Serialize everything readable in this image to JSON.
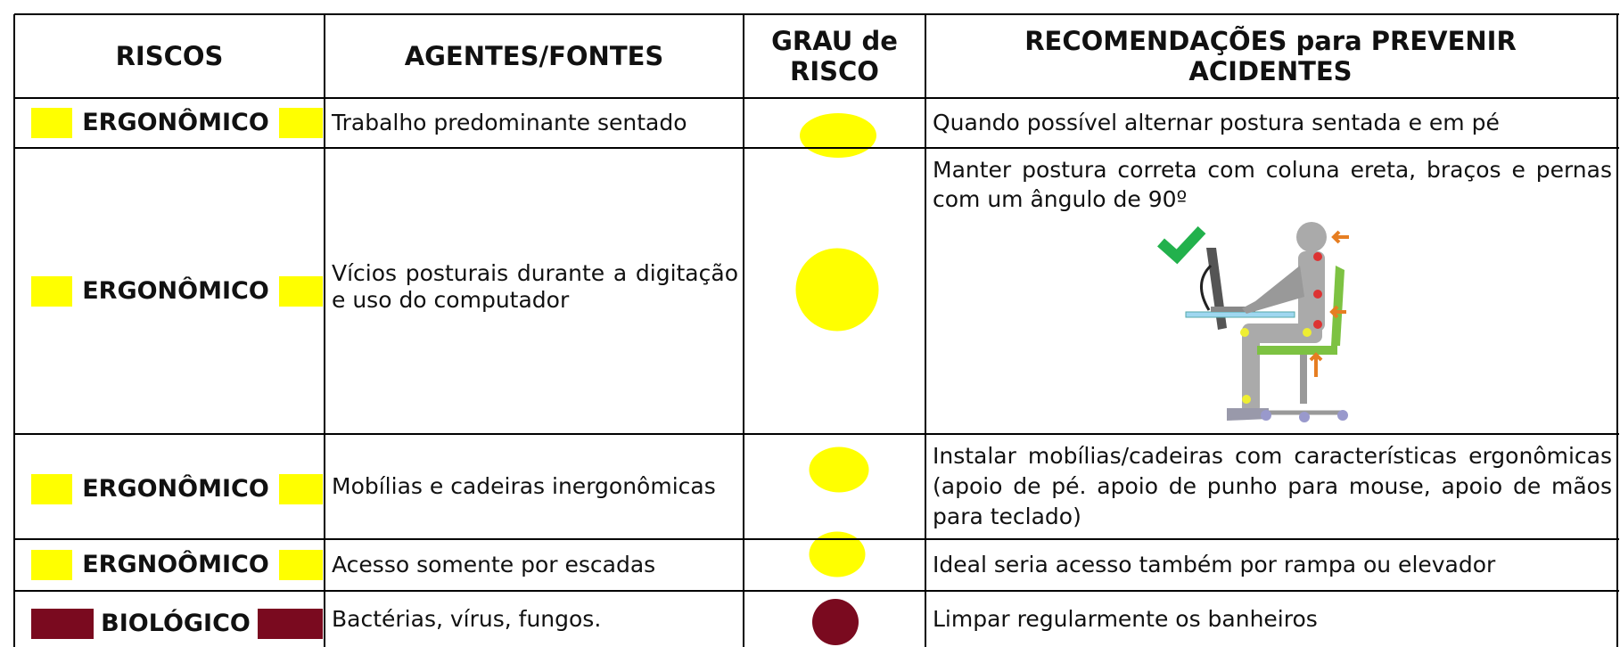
{
  "table": {
    "header": [
      "RISCOS",
      "AGENTES/FONTES",
      "GRAU de RISCO",
      "RECOMENDAÇÕES para PREVENIR ACIDENTES"
    ],
    "rows": [
      {
        "risk": "ERGONÔMICO",
        "agent": "Trabalho predominante sentado",
        "recommendation": "Quando possível alternar postura sentada e em pé"
      },
      {
        "risk": "ERGONÔMICO",
        "agent": "Vícios posturais durante a digitação e uso do computador",
        "recommendation": "Manter postura correta com coluna ereta, braços e pernas com um ângulo de 90º"
      },
      {
        "risk": "ERGONÔMICO",
        "agent": "Mobílias e cadeiras inergonômicas",
        "recommendation": "Instalar mobílias/cadeiras com características ergonômicas (apoio de pé. apoio de punho para mouse, apoio de mãos para teclado)"
      },
      {
        "risk": "ERGNOÔMICO",
        "agent": "Acesso somente por escadas",
        "recommendation": "Ideal seria acesso também por rampa ou elevador"
      },
      {
        "risk": "BIOLÓGICO",
        "agent": "Bactérias, vírus, fungos.",
        "recommendation": "Limpar regularmente os banheiros"
      }
    ]
  }
}
